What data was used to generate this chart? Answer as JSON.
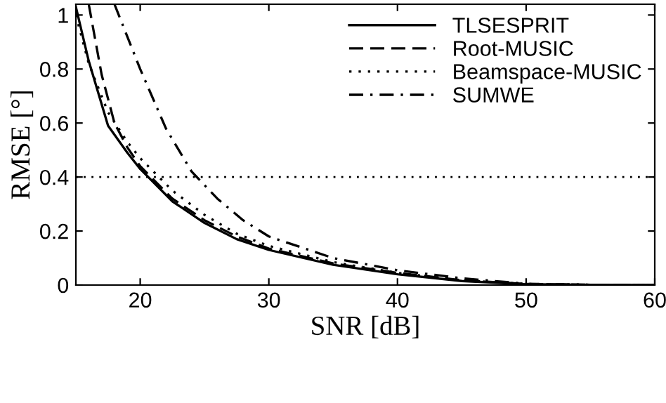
{
  "chart_data": {
    "type": "line",
    "xlabel": "SNR [dB]",
    "ylabel": "RMSE [°]",
    "xlim": [
      15,
      60
    ],
    "xticks": [
      20,
      30,
      40,
      50,
      60
    ],
    "ylim": [
      0,
      1.04
    ],
    "yticks": [
      0,
      0.2,
      0.4,
      0.6,
      0.8,
      1
    ],
    "grid": false,
    "legend": "top right",
    "marker": "none",
    "series": [
      {
        "name": "TLSESPRIT",
        "color": "#000000",
        "line_style": "solid",
        "x": [
          15,
          16,
          17.5,
          19,
          20,
          22.5,
          25,
          27.5,
          30,
          35,
          40,
          45,
          50,
          55,
          60
        ],
        "values": [
          1.03,
          0.83,
          0.59,
          0.49,
          0.43,
          0.31,
          0.23,
          0.17,
          0.13,
          0.075,
          0.04,
          0.015,
          0.003,
          0.001,
          0
        ]
      },
      {
        "name": "Root-MUSIC",
        "color": "#000000",
        "line_style": "dashed",
        "x": [
          16,
          17,
          18,
          19,
          20,
          22.5,
          25,
          27.5,
          30,
          35,
          40,
          45,
          50,
          55,
          60
        ],
        "values": [
          1.04,
          0.78,
          0.6,
          0.51,
          0.44,
          0.32,
          0.24,
          0.18,
          0.135,
          0.08,
          0.045,
          0.018,
          0.004,
          0.001,
          0
        ]
      },
      {
        "name": "Beamspace-MUSIC",
        "color": "#000000",
        "line_style": "dotted",
        "x": [
          15,
          16,
          17.5,
          19,
          20,
          22.5,
          25,
          27.5,
          30,
          35,
          40,
          45,
          50,
          55,
          60
        ],
        "values": [
          1.0,
          0.82,
          0.64,
          0.53,
          0.47,
          0.35,
          0.26,
          0.19,
          0.145,
          0.085,
          0.045,
          0.018,
          0.004,
          0.001,
          0
        ]
      },
      {
        "name": "SUMWE",
        "color": "#000000",
        "line_style": "dashdot",
        "x": [
          18,
          20,
          22,
          24,
          26,
          28,
          30,
          35,
          40,
          45,
          50,
          55,
          60
        ],
        "values": [
          1.04,
          0.8,
          0.58,
          0.42,
          0.32,
          0.24,
          0.18,
          0.1,
          0.055,
          0.025,
          0.005,
          0.001,
          0
        ]
      }
    ],
    "ref_lines": [
      {
        "axis": "y",
        "value": 0.4,
        "color": "#000000",
        "line_style": "dotted"
      }
    ]
  }
}
